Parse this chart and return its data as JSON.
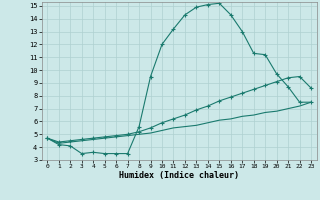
{
  "line1_x": [
    0,
    1,
    2,
    3,
    4,
    5,
    6,
    7,
    8,
    9,
    10,
    11,
    12,
    13,
    14,
    15,
    16,
    17,
    18,
    19,
    20,
    21,
    22,
    23
  ],
  "line1_y": [
    4.7,
    4.2,
    4.1,
    3.5,
    3.6,
    3.5,
    3.5,
    3.5,
    5.6,
    9.5,
    12.0,
    13.2,
    14.3,
    14.9,
    15.1,
    15.2,
    14.3,
    13.0,
    11.3,
    11.2,
    9.7,
    8.7,
    7.5,
    7.5
  ],
  "line2_x": [
    0,
    1,
    2,
    3,
    4,
    5,
    6,
    7,
    8,
    9,
    10,
    11,
    12,
    13,
    14,
    15,
    16,
    17,
    18,
    19,
    20,
    21,
    22,
    23
  ],
  "line2_y": [
    4.7,
    4.4,
    4.5,
    4.6,
    4.7,
    4.8,
    4.9,
    5.0,
    5.2,
    5.5,
    5.9,
    6.2,
    6.5,
    6.9,
    7.2,
    7.6,
    7.9,
    8.2,
    8.5,
    8.8,
    9.1,
    9.4,
    9.5,
    8.6
  ],
  "line3_x": [
    0,
    1,
    2,
    3,
    4,
    5,
    6,
    7,
    8,
    9,
    10,
    11,
    12,
    13,
    14,
    15,
    16,
    17,
    18,
    19,
    20,
    21,
    22,
    23
  ],
  "line3_y": [
    4.7,
    4.3,
    4.4,
    4.5,
    4.6,
    4.7,
    4.8,
    4.9,
    5.0,
    5.1,
    5.3,
    5.5,
    5.6,
    5.7,
    5.9,
    6.1,
    6.2,
    6.4,
    6.5,
    6.7,
    6.8,
    7.0,
    7.2,
    7.5
  ],
  "color": "#1a7a6e",
  "bg_color": "#cce8e8",
  "grid_color": "#afd0d0",
  "xlabel": "Humidex (Indice chaleur)",
  "xlim": [
    -0.5,
    23.5
  ],
  "ylim": [
    3,
    15.3
  ],
  "xticks": [
    0,
    1,
    2,
    3,
    4,
    5,
    6,
    7,
    8,
    9,
    10,
    11,
    12,
    13,
    14,
    15,
    16,
    17,
    18,
    19,
    20,
    21,
    22,
    23
  ],
  "yticks": [
    3,
    4,
    5,
    6,
    7,
    8,
    9,
    10,
    11,
    12,
    13,
    14,
    15
  ],
  "marker": "+"
}
